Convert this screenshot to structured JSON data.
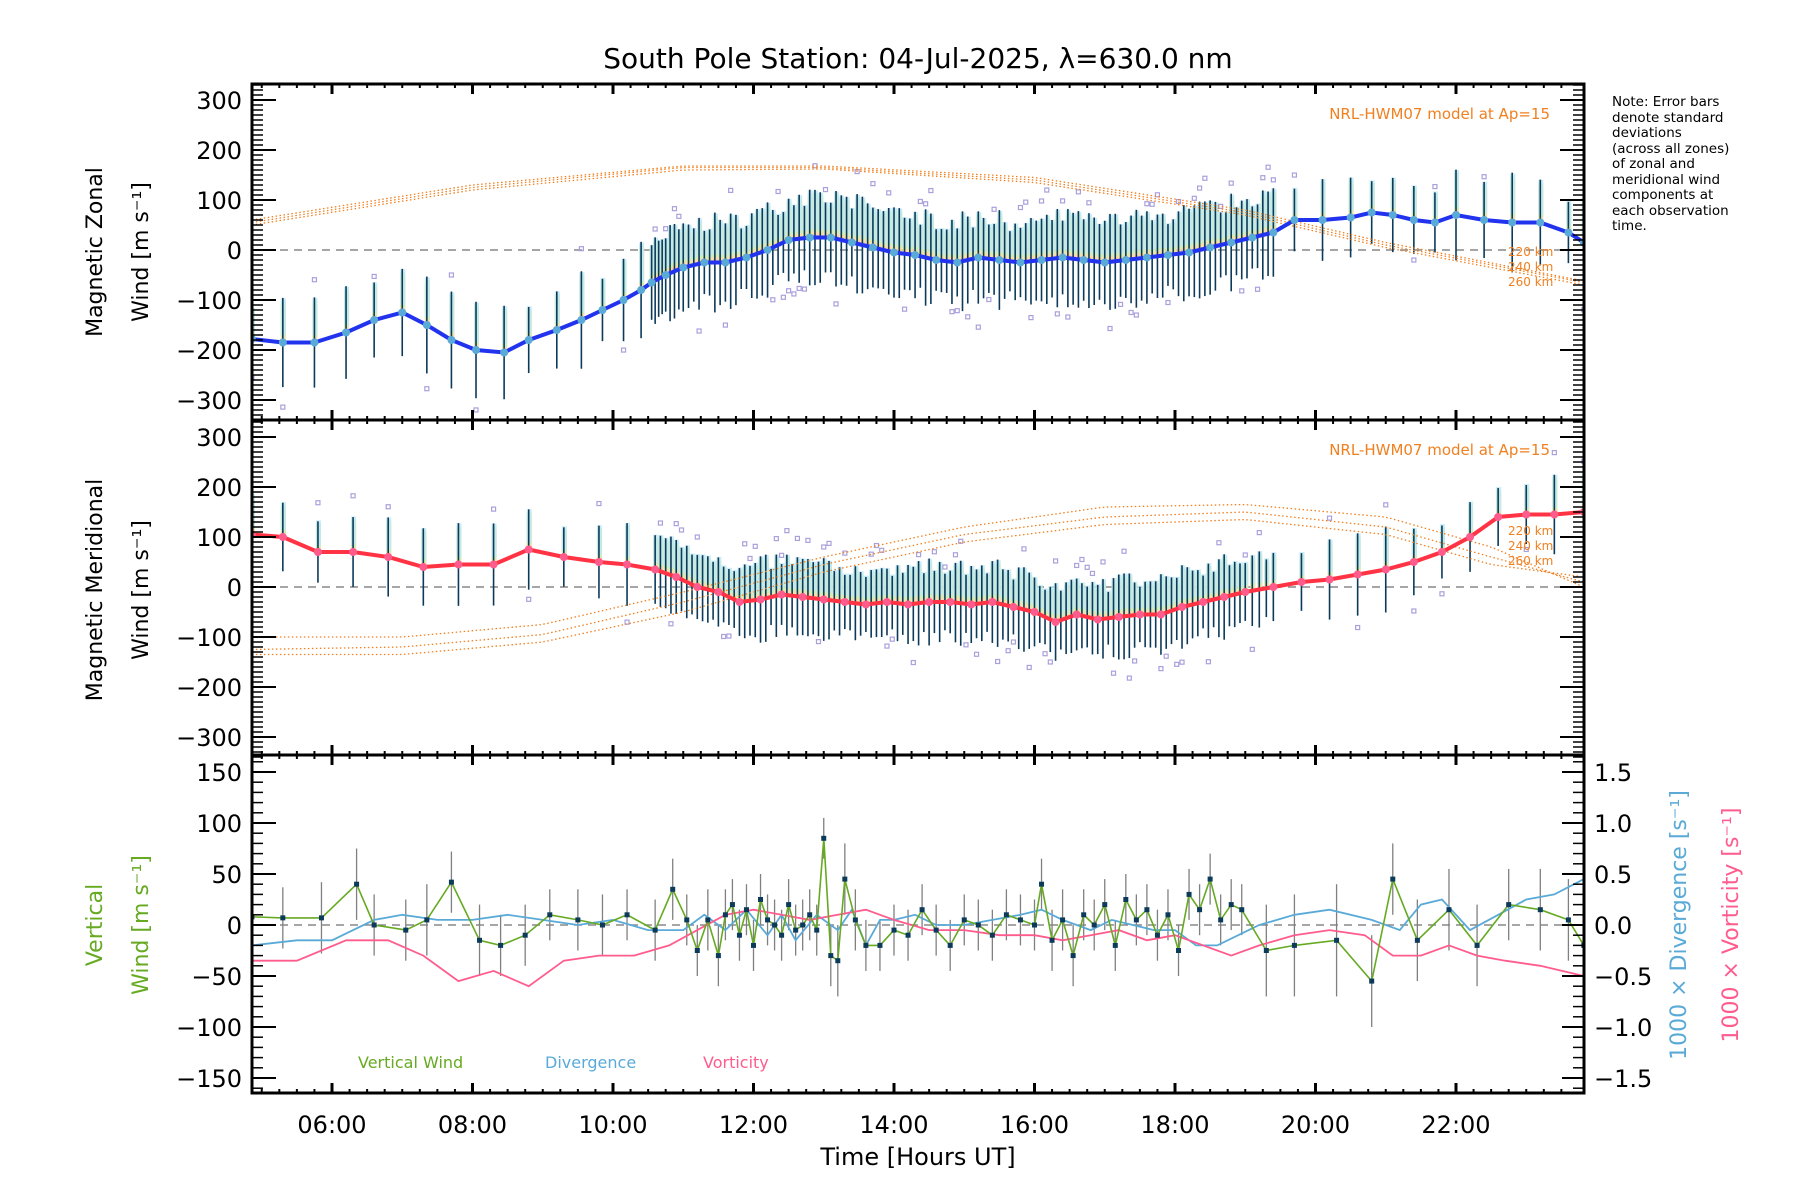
{
  "chart_data": {
    "type": "line",
    "title": "South Pole Station: 04-Jul-2025, λ=630.0 nm",
    "xlabel": "Time [Hours UT]",
    "x_unit": "hours UT",
    "xlim": [
      4.86,
      23.82
    ],
    "x_ticks": [
      6,
      8,
      10,
      12,
      14,
      16,
      18,
      20,
      22
    ],
    "x_tick_labels": [
      "06:00",
      "08:00",
      "10:00",
      "12:00",
      "14:00",
      "16:00",
      "18:00",
      "20:00",
      "22:00"
    ],
    "note": [
      "Note: Error bars",
      "denote standard",
      "deviations",
      "(across all zones)",
      "of zonal and",
      "meridional wind",
      "components at",
      "each observation",
      "time."
    ],
    "panels": [
      {
        "id": "zonal",
        "ylabel_line1": "Magnetic Zonal",
        "ylabel_line2": "Wind [m s⁻¹]",
        "ylim": [
          -340,
          332
        ],
        "y_ticks": [
          300,
          200,
          100,
          0,
          -100,
          -200,
          -300
        ],
        "y_tick_labels": [
          "300",
          "200",
          "100",
          "0",
          "−100",
          "−200",
          "−300"
        ],
        "model_label": "NRL-HWM07 model at Ap=15",
        "model_altitudes": [
          "220 km",
          "240 km",
          "260 km"
        ],
        "mean_color": "#2233ee",
        "mean_series": {
          "name": "Mean magnetic zonal wind",
          "t": [
            4.86,
            5.3,
            5.75,
            6.2,
            6.6,
            7.0,
            7.35,
            7.7,
            8.05,
            8.45,
            8.8,
            9.2,
            9.55,
            9.85,
            10.15,
            10.4,
            10.55,
            10.75,
            11.0,
            11.3,
            11.6,
            11.9,
            12.2,
            12.5,
            12.8,
            13.1,
            13.4,
            13.7,
            14.0,
            14.3,
            14.6,
            14.9,
            15.2,
            15.5,
            15.8,
            16.1,
            16.4,
            16.7,
            17.0,
            17.3,
            17.6,
            17.9,
            18.2,
            18.5,
            18.8,
            19.1,
            19.4,
            19.7,
            20.1,
            20.5,
            20.8,
            21.1,
            21.4,
            21.7,
            22.0,
            22.4,
            22.8,
            23.2,
            23.6,
            23.82
          ],
          "v": [
            -178,
            -185,
            -185,
            -165,
            -140,
            -125,
            -150,
            -180,
            -200,
            -205,
            -180,
            -160,
            -140,
            -120,
            -100,
            -80,
            -65,
            -50,
            -35,
            -25,
            -25,
            -15,
            0,
            20,
            25,
            25,
            15,
            5,
            -5,
            -10,
            -20,
            -25,
            -15,
            -20,
            -25,
            -20,
            -15,
            -20,
            -25,
            -20,
            -15,
            -10,
            -5,
            5,
            15,
            25,
            35,
            60,
            60,
            65,
            75,
            70,
            60,
            55,
            70,
            60,
            55,
            55,
            35,
            15
          ]
        },
        "model_series": [
          {
            "name": "220 km",
            "t": [
              4.86,
              8,
              11,
              13,
              16,
              19,
              21,
              23.82
            ],
            "v": [
              50,
              120,
              160,
              162,
              135,
              70,
              5,
              -70
            ]
          },
          {
            "name": "240 km",
            "t": [
              4.86,
              8,
              11,
              13,
              16,
              19,
              21,
              23.82
            ],
            "v": [
              55,
              125,
              165,
              165,
              140,
              75,
              10,
              -65
            ]
          },
          {
            "name": "260 km",
            "t": [
              4.86,
              8,
              11,
              13,
              16,
              19,
              21,
              23.82
            ],
            "v": [
              60,
              130,
              168,
              168,
              145,
              80,
              15,
              -62
            ]
          }
        ],
        "error_bar_half_width_typical": 80
      },
      {
        "id": "meridional",
        "ylabel_line1": "Magnetic Meridional",
        "ylabel_line2": "Wind [m s⁻¹]",
        "ylim": [
          -340,
          332
        ],
        "y_ticks": [
          300,
          200,
          100,
          0,
          -100,
          -200,
          -300
        ],
        "y_tick_labels": [
          "300",
          "200",
          "100",
          "0",
          "−100",
          "−200",
          "−300"
        ],
        "model_label": "NRL-HWM07 model at Ap=15",
        "model_altitudes": [
          "220 km",
          "240 km",
          "260 km"
        ],
        "mean_color": "#ff3344",
        "mean_series": {
          "name": "Mean magnetic meridional wind",
          "t": [
            4.86,
            5.3,
            5.8,
            6.3,
            6.8,
            7.3,
            7.8,
            8.3,
            8.8,
            9.3,
            9.8,
            10.2,
            10.6,
            10.9,
            11.2,
            11.5,
            11.8,
            12.1,
            12.4,
            12.7,
            13.0,
            13.3,
            13.6,
            13.9,
            14.2,
            14.5,
            14.8,
            15.1,
            15.4,
            15.7,
            16.0,
            16.3,
            16.6,
            16.9,
            17.2,
            17.5,
            17.8,
            18.1,
            18.4,
            18.7,
            19.0,
            19.4,
            19.8,
            20.2,
            20.6,
            21.0,
            21.4,
            21.8,
            22.2,
            22.6,
            23.0,
            23.4,
            23.82
          ],
          "v": [
            105,
            100,
            70,
            70,
            60,
            40,
            45,
            45,
            75,
            60,
            50,
            45,
            35,
            20,
            0,
            -10,
            -30,
            -25,
            -15,
            -20,
            -25,
            -30,
            -35,
            -30,
            -35,
            -30,
            -30,
            -35,
            -30,
            -40,
            -50,
            -70,
            -55,
            -65,
            -60,
            -55,
            -55,
            -40,
            -30,
            -20,
            -10,
            0,
            10,
            15,
            25,
            35,
            50,
            70,
            100,
            140,
            145,
            145,
            150
          ]
        },
        "model_series": [
          {
            "name": "220 km",
            "t": [
              4.86,
              7,
              9,
              11,
              13,
              15,
              17,
              19,
              21,
              22.5,
              23.82
            ],
            "v": [
              -100,
              -100,
              -75,
              -10,
              60,
              120,
              160,
              165,
              140,
              80,
              0
            ]
          },
          {
            "name": "240 km",
            "t": [
              4.86,
              7,
              9,
              11,
              13,
              15,
              17,
              19,
              21,
              22.5,
              23.82
            ],
            "v": [
              -125,
              -120,
              -95,
              -30,
              45,
              105,
              140,
              150,
              120,
              60,
              10
            ]
          },
          {
            "name": "260 km",
            "t": [
              4.86,
              7,
              9,
              11,
              13,
              15,
              17,
              19,
              21,
              22.5,
              23.82
            ],
            "v": [
              -135,
              -135,
              -110,
              -50,
              30,
              90,
              125,
              135,
              105,
              45,
              20
            ]
          }
        ],
        "error_bar_half_width_typical": 70
      },
      {
        "id": "vertical",
        "ylabel_line1": "Vertical",
        "ylabel_line2": "Wind [m s⁻¹]",
        "ylim": [
          -166,
          167
        ],
        "y_ticks": [
          150,
          100,
          50,
          0,
          -50,
          -100,
          -150
        ],
        "y_tick_labels": [
          "150",
          "100",
          "50",
          "0",
          "−50",
          "−100",
          "−150"
        ],
        "right_ylim": [
          -1.66,
          1.67
        ],
        "right_y_ticks": [
          1.5,
          1.0,
          0.5,
          0.0,
          -0.5,
          -1.0,
          -1.5
        ],
        "right_y_tick_labels": [
          "1.5",
          "1.0",
          "0.5",
          "0.0",
          "−0.5",
          "−1.0",
          "−1.5"
        ],
        "right_ylabel_divergence": "1000 × Divergence [s⁻¹]",
        "right_ylabel_vorticity": "1000 × Vorticity [s⁻¹]",
        "legend": [
          {
            "label": "Vertical Wind",
            "color": "#66aa22"
          },
          {
            "label": "Divergence",
            "color": "#5aaad8"
          },
          {
            "label": "Vorticity",
            "color": "#ff5c8d"
          }
        ],
        "legend_placement": "bottom-left",
        "series": [
          {
            "name": "Vertical Wind",
            "axis": "left",
            "t": [
              4.86,
              5.3,
              5.85,
              6.35,
              6.6,
              7.05,
              7.35,
              7.7,
              8.1,
              8.4,
              8.75,
              9.1,
              9.5,
              9.85,
              10.2,
              10.6,
              10.85,
              11.05,
              11.2,
              11.35,
              11.5,
              11.6,
              11.7,
              11.8,
              11.9,
              12.0,
              12.1,
              12.2,
              12.3,
              12.4,
              12.5,
              12.6,
              12.7,
              12.8,
              12.9,
              13.0,
              13.1,
              13.2,
              13.3,
              13.45,
              13.6,
              13.8,
              14.0,
              14.2,
              14.4,
              14.6,
              14.8,
              15.0,
              15.2,
              15.4,
              15.6,
              15.8,
              16.0,
              16.1,
              16.25,
              16.4,
              16.55,
              16.7,
              16.85,
              17.0,
              17.15,
              17.3,
              17.45,
              17.6,
              17.75,
              17.9,
              18.05,
              18.2,
              18.35,
              18.5,
              18.65,
              18.8,
              18.95,
              19.3,
              19.7,
              20.3,
              20.8,
              21.1,
              21.45,
              21.9,
              22.3,
              22.75,
              23.2,
              23.6,
              23.82
            ],
            "v": [
              8,
              7,
              7,
              40,
              0,
              -5,
              5,
              42,
              -15,
              -20,
              -10,
              10,
              5,
              0,
              10,
              -5,
              35,
              5,
              -25,
              5,
              -30,
              10,
              20,
              -10,
              15,
              -20,
              25,
              5,
              0,
              -10,
              20,
              -5,
              0,
              10,
              -5,
              85,
              -30,
              -35,
              45,
              5,
              -20,
              -20,
              -5,
              -10,
              15,
              -5,
              -20,
              5,
              0,
              -10,
              10,
              5,
              0,
              40,
              -15,
              5,
              -30,
              10,
              0,
              20,
              -20,
              25,
              5,
              15,
              -10,
              10,
              -25,
              30,
              15,
              45,
              5,
              20,
              15,
              -25,
              -20,
              -15,
              -55,
              45,
              -15,
              15,
              -20,
              20,
              15,
              5,
              -20
            ],
            "error": [
              35,
              30,
              35,
              35,
              30,
              30,
              35,
              30,
              35,
              30,
              30,
              25,
              30,
              30,
              25,
              30,
              30,
              25,
              25,
              30,
              30,
              25,
              25,
              25,
              25,
              25,
              25,
              25,
              25,
              25,
              25,
              25,
              25,
              25,
              25,
              20,
              30,
              35,
              35,
              30,
              25,
              25,
              25,
              25,
              25,
              25,
              25,
              25,
              25,
              25,
              25,
              25,
              25,
              25,
              30,
              30,
              30,
              25,
              25,
              25,
              25,
              25,
              25,
              25,
              25,
              25,
              25,
              25,
              25,
              25,
              25,
              25,
              25,
              45,
              50,
              55,
              45,
              35,
              40,
              40,
              40,
              35,
              40,
              40,
              40
            ]
          },
          {
            "name": "Divergence",
            "axis": "right",
            "t": [
              4.86,
              5.5,
              6.0,
              6.6,
              7.0,
              7.5,
              8.0,
              8.5,
              9.0,
              9.5,
              10.0,
              10.5,
              11.0,
              11.3,
              11.6,
              11.9,
              12.2,
              12.4,
              12.6,
              12.9,
              13.2,
              13.4,
              13.6,
              13.8,
              14.0,
              14.3,
              14.6,
              15.0,
              15.4,
              15.8,
              16.1,
              16.4,
              16.8,
              17.1,
              17.4,
              17.7,
              18.0,
              18.3,
              18.6,
              18.9,
              19.2,
              19.7,
              20.2,
              20.8,
              21.2,
              21.5,
              21.8,
              22.2,
              22.6,
              23.0,
              23.4,
              23.82
            ],
            "v": [
              -0.2,
              -0.15,
              -0.15,
              0.05,
              0.1,
              0.05,
              0.05,
              0.1,
              0.05,
              0.0,
              0.05,
              -0.05,
              -0.05,
              0.1,
              -0.05,
              0.15,
              -0.1,
              0.1,
              -0.15,
              0.1,
              -0.05,
              0.15,
              -0.2,
              0.05,
              0.05,
              0.1,
              0.0,
              0.0,
              0.05,
              0.1,
              0.15,
              0.05,
              -0.05,
              0.05,
              0.0,
              -0.05,
              -0.05,
              -0.2,
              -0.2,
              -0.1,
              0.0,
              0.1,
              0.15,
              0.05,
              -0.05,
              0.2,
              0.25,
              -0.05,
              0.1,
              0.25,
              0.3,
              0.45
            ]
          },
          {
            "name": "Vorticity",
            "axis": "right",
            "t": [
              4.86,
              5.5,
              6.2,
              6.8,
              7.3,
              7.8,
              8.3,
              8.8,
              9.3,
              9.8,
              10.3,
              10.8,
              11.2,
              11.6,
              12.0,
              12.4,
              12.8,
              13.2,
              13.6,
              14.0,
              14.5,
              15.0,
              15.5,
              16.0,
              16.4,
              16.8,
              17.2,
              17.6,
              18.0,
              18.4,
              18.8,
              19.2,
              19.7,
              20.2,
              20.7,
              21.1,
              21.5,
              21.9,
              22.3,
              22.7,
              23.2,
              23.82
            ],
            "v": [
              -0.35,
              -0.35,
              -0.15,
              -0.15,
              -0.3,
              -0.55,
              -0.45,
              -0.6,
              -0.35,
              -0.3,
              -0.3,
              -0.2,
              -0.05,
              0.1,
              0.15,
              0.1,
              0.05,
              0.1,
              0.15,
              0.05,
              -0.05,
              -0.05,
              -0.1,
              -0.1,
              -0.15,
              -0.1,
              -0.05,
              -0.15,
              -0.1,
              -0.2,
              -0.3,
              -0.2,
              -0.1,
              -0.05,
              -0.1,
              -0.3,
              -0.3,
              -0.2,
              -0.3,
              -0.35,
              -0.4,
              -0.5
            ]
          }
        ]
      }
    ]
  }
}
